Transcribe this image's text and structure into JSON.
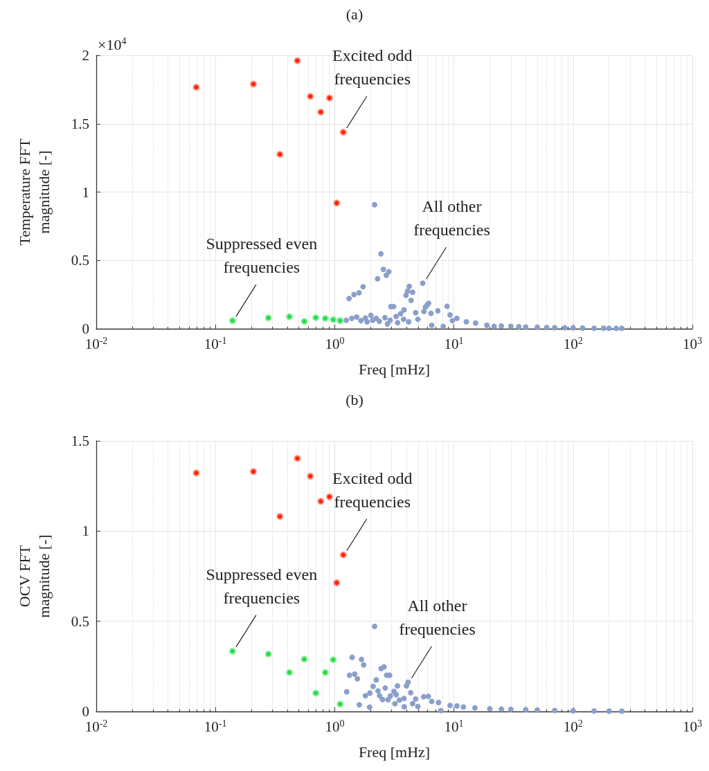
{
  "chart_data": [
    {
      "type": "scatter",
      "title": "(a)",
      "xlabel": "Freq [mHz]",
      "ylabel": "Temperature FFT\nmagnitude [-]",
      "log": "x",
      "grid": true,
      "marker": "circle",
      "xlim": [
        0.01,
        1000
      ],
      "xticks": [
        {
          "value": 0.01,
          "label": "10$^{-2}$"
        },
        {
          "value": 0.1,
          "label": "10$^{-1}$"
        },
        {
          "value": 1,
          "label": "10$^{0}$"
        },
        {
          "value": 10,
          "label": "10$^{1}$"
        },
        {
          "value": 100,
          "label": "10$^{2}$"
        },
        {
          "value": 1000,
          "label": "10$^{3}$"
        }
      ],
      "ylim": [
        0,
        2
      ],
      "yticks": [
        0,
        0.5,
        1,
        1.5,
        2
      ],
      "annotations": [
        "×10$^{4}$",
        {
          "text": "Excited odd\nfrequencies",
          "x": 1.18,
          "y": 1.438
        },
        {
          "text": "Suppressed even\nfrequencies",
          "x": 0.139,
          "y": 0.059
        },
        {
          "text": "All other\nfrequencies",
          "x": 5.47,
          "y": 0.333
        }
      ],
      "series": [
        {
          "color": "#ff2200",
          "x": [
            0.069,
            0.208,
            0.347,
            0.486,
            0.625,
            0.764,
            0.903,
            1.04,
            1.18
          ],
          "values": [
            1.767,
            1.79,
            1.276,
            1.961,
            1.7,
            1.585,
            1.688,
            0.92,
            1.438
          ]
        },
        {
          "color": "#22dd44",
          "x": [
            0.139,
            0.278,
            0.417,
            0.556,
            0.694,
            0.833,
            0.972,
            1.11
          ],
          "values": [
            0.059,
            0.079,
            0.088,
            0.054,
            0.081,
            0.076,
            0.067,
            0.059
          ]
        },
        {
          "color": "#8a9fcc",
          "x": [
            2.16,
            2.44,
            2.56,
            2.84,
            2.71,
            2.29,
            1.73,
            1.6,
            1.45,
            1.32,
            5.47,
            4.22,
            4.08,
            4.5,
            3.96,
            4.37,
            2.96,
            3.12,
            3.81,
            6.13,
            5.96,
            5.77,
            8.76,
            5.6,
            6.42,
            7.33,
            4.77,
            3.57,
            2.01,
            1.25,
            1.39,
            1.53,
            1.66,
            1.81,
            1.87,
            2.08,
            2.23,
            2.37,
            2.64,
            2.77,
            2.92,
            3.27,
            3.37,
            3.78,
            4.17,
            4.98,
            6.51,
            8.13,
            9.28,
            9.71,
            10.6,
            12.7,
            15.2,
            18.9,
            21.7,
            25,
            30,
            35,
            40,
            50,
            60,
            70,
            85,
            100,
            120,
            150,
            180,
            200,
            230,
            256
          ],
          "values": [
            0.908,
            0.548,
            0.434,
            0.417,
            0.391,
            0.366,
            0.307,
            0.263,
            0.25,
            0.221,
            0.333,
            0.31,
            0.275,
            0.267,
            0.245,
            0.208,
            0.162,
            0.162,
            0.138,
            0.186,
            0.174,
            0.16,
            0.164,
            0.127,
            0.113,
            0.132,
            0.118,
            0.11,
            0.098,
            0.062,
            0.076,
            0.086,
            0.059,
            0.079,
            0.051,
            0.062,
            0.076,
            0.054,
            0.081,
            0.035,
            0.062,
            0.09,
            0.044,
            0.069,
            0.051,
            0.069,
            0.025,
            0.017,
            0.101,
            0.059,
            0.076,
            0.051,
            0.042,
            0.025,
            0.017,
            0.02,
            0.018,
            0.015,
            0.013,
            0.011,
            0.009,
            0.008,
            0.007,
            0.006,
            0.005,
            0.004,
            0.004,
            0.003,
            0.003,
            0.003
          ]
        }
      ]
    },
    {
      "type": "scatter",
      "title": "(b)",
      "xlabel": "Freq [mHz]",
      "ylabel": "OCV FFT\nmagnitude [-]",
      "log": "x",
      "grid": true,
      "marker": "circle",
      "xlim": [
        0.01,
        1000
      ],
      "xticks": [
        {
          "value": 0.01,
          "label": "10$^{-2}$"
        },
        {
          "value": 0.1,
          "label": "10$^{-1}$"
        },
        {
          "value": 1,
          "label": "10$^{0}$"
        },
        {
          "value": 10,
          "label": "10$^{1}$"
        },
        {
          "value": 100,
          "label": "10$^{2}$"
        },
        {
          "value": 1000,
          "label": "10$^{3}$"
        }
      ],
      "ylim": [
        0,
        1.5
      ],
      "yticks": [
        0,
        0.5,
        1,
        1.5
      ],
      "annotations": [
        {
          "text": "Excited odd\nfrequencies",
          "x": 1.18,
          "y": 0.868
        },
        {
          "text": "Suppressed even\nfrequencies",
          "x": 0.139,
          "y": 0.334
        },
        {
          "text": "All other\nfrequencies",
          "x": 4.13,
          "y": 0.162
        }
      ],
      "series": [
        {
          "color": "#ff2200",
          "x": [
            0.069,
            0.208,
            0.347,
            0.486,
            0.625,
            0.764,
            0.903,
            1.04,
            1.18
          ],
          "values": [
            1.322,
            1.33,
            1.081,
            1.403,
            1.304,
            1.165,
            1.19,
            0.713,
            0.868
          ]
        },
        {
          "color": "#22dd44",
          "x": [
            0.139,
            0.278,
            0.417,
            0.556,
            0.694,
            0.833,
            0.972,
            1.11
          ],
          "values": [
            0.334,
            0.318,
            0.216,
            0.29,
            0.102,
            0.216,
            0.287,
            0.041
          ]
        },
        {
          "color": "#8a9fcc",
          "x": [
            2.16,
            1.4,
            1.68,
            1.75,
            2.59,
            2.45,
            2.73,
            2.89,
            1.33,
            1.47,
            1.55,
            2.23,
            4.13,
            4.0,
            3.36,
            2.1,
            2.65,
            1.26,
            2.31,
            1.97,
            1.87,
            1.81,
            3.14,
            3.28,
            2.38,
            2.93,
            2.52,
            2.8,
            4.34,
            1.61,
            1.96,
            3.2,
            3.83,
            3.49,
            3.81,
            4.5,
            4.98,
            4.77,
            5.57,
            6.09,
            6.51,
            7.43,
            7.78,
            9.28,
            10.6,
            12,
            15,
            20,
            25,
            30,
            40,
            50,
            70,
            100,
            150,
            200,
            256
          ],
          "values": [
            0.472,
            0.3,
            0.289,
            0.258,
            0.247,
            0.238,
            0.201,
            0.201,
            0.201,
            0.207,
            0.181,
            0.175,
            0.162,
            0.142,
            0.142,
            0.139,
            0.13,
            0.109,
            0.114,
            0.102,
            null,
            0.087,
            0.111,
            0.093,
            0.087,
            0.086,
            0.066,
            0.065,
            0.104,
            0.037,
            0.024,
            0.043,
            0.026,
            0.063,
            0.072,
            0.043,
            0.028,
            0.069,
            0.082,
            0.084,
            0.056,
            0.05,
            0.005,
            0.033,
            0.031,
            0.025,
            0.02,
            0.015,
            0.013,
            0.012,
            0.01,
            0.008,
            0.006,
            0.004,
            0.003,
            0.002,
            0.002
          ]
        }
      ]
    }
  ]
}
